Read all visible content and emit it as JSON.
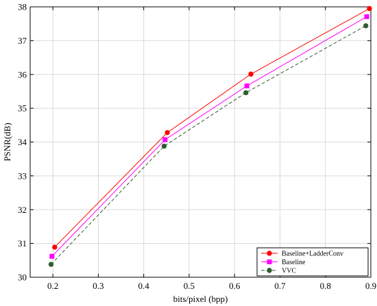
{
  "chart_data": {
    "type": "line",
    "title": "",
    "xlabel": "bits/pixel (bpp)",
    "ylabel": "PSNR(dB)",
    "xlim": [
      0.15,
      0.9
    ],
    "ylim": [
      30,
      38
    ],
    "xticks": [
      0.2,
      0.3,
      0.4,
      0.5,
      0.6,
      0.7,
      0.8,
      0.9
    ],
    "xtick_labels": [
      "0.2",
      "0.3",
      "0.4",
      "0.5",
      "0.6",
      "0.7",
      "0.8",
      "0.9"
    ],
    "yticks": [
      30,
      31,
      32,
      33,
      34,
      35,
      36,
      37,
      38
    ],
    "ytick_labels": [
      "30",
      "31",
      "32",
      "33",
      "34",
      "35",
      "36",
      "37",
      "38"
    ],
    "grid": true,
    "legend_position": "bottom-right",
    "series": [
      {
        "name": "Baseline+LadderConv",
        "color": "#ff0000",
        "marker": "circle",
        "line_style": "solid",
        "x": [
          0.204,
          0.452,
          0.636,
          0.897
        ],
        "y": [
          30.89,
          34.28,
          36.01,
          37.95
        ]
      },
      {
        "name": "Baseline",
        "color": "#ff00ff",
        "marker": "square",
        "line_style": "solid",
        "x": [
          0.198,
          0.447,
          0.627,
          0.891
        ],
        "y": [
          30.62,
          34.07,
          35.66,
          37.71
        ]
      },
      {
        "name": "VVC",
        "color": "#2e5e2e",
        "marker": "circle",
        "line_style": "dashed",
        "x": [
          0.196,
          0.445,
          0.625,
          0.889
        ],
        "y": [
          30.38,
          33.88,
          35.46,
          37.44
        ]
      }
    ]
  }
}
